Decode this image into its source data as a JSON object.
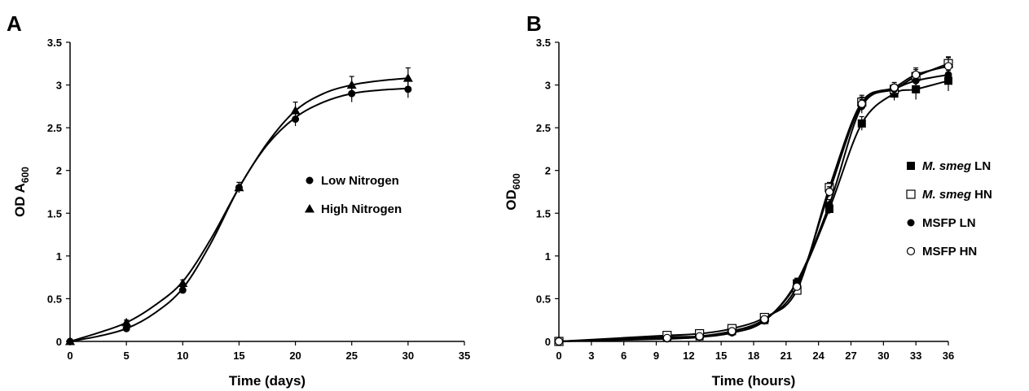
{
  "chart_data": [
    {
      "panel": "A",
      "type": "line",
      "xlabel": "Time (days)",
      "ylabel": {
        "main": "OD A",
        "sub": "600"
      },
      "xlim": [
        0,
        35
      ],
      "ylim": [
        0,
        3.5
      ],
      "xticks": [
        "0",
        "5",
        "10",
        "15",
        "20",
        "25",
        "30",
        "35"
      ],
      "yticks": [
        "0",
        "0.5",
        "1",
        "1.5",
        "2",
        "2.5",
        "3",
        "3.5"
      ],
      "grid": false,
      "legend_position": "center-right",
      "series": [
        {
          "name": "Low Nitrogen",
          "marker": "circle",
          "x": [
            0,
            5,
            10,
            15,
            20,
            25,
            30
          ],
          "y": [
            0,
            0.15,
            0.6,
            1.8,
            2.6,
            2.9,
            2.95
          ],
          "err": [
            0,
            0.02,
            0.03,
            0.06,
            0.08,
            0.1,
            0.1
          ],
          "fit": [
            [
              0,
              0
            ],
            [
              2.5,
              0.06
            ],
            [
              5,
              0.15
            ],
            [
              7.5,
              0.33
            ],
            [
              10,
              0.62
            ],
            [
              12.5,
              1.15
            ],
            [
              15,
              1.8
            ],
            [
              17.5,
              2.3
            ],
            [
              20,
              2.62
            ],
            [
              22.5,
              2.8
            ],
            [
              25,
              2.9
            ],
            [
              27.5,
              2.94
            ],
            [
              30,
              2.96
            ]
          ]
        },
        {
          "name": "High Nitrogen",
          "marker": "triangle",
          "x": [
            0,
            5,
            10,
            15,
            20,
            25,
            30
          ],
          "y": [
            0,
            0.22,
            0.68,
            1.8,
            2.7,
            3.0,
            3.08
          ],
          "err": [
            0,
            0.03,
            0.04,
            0.06,
            0.1,
            0.1,
            0.12
          ],
          "fit": [
            [
              0,
              0
            ],
            [
              2.5,
              0.1
            ],
            [
              5,
              0.22
            ],
            [
              7.5,
              0.42
            ],
            [
              10,
              0.7
            ],
            [
              12.5,
              1.2
            ],
            [
              15,
              1.8
            ],
            [
              17.5,
              2.32
            ],
            [
              20,
              2.7
            ],
            [
              22.5,
              2.9
            ],
            [
              25,
              3.0
            ],
            [
              27.5,
              3.05
            ],
            [
              30,
              3.08
            ]
          ]
        }
      ]
    },
    {
      "panel": "B",
      "type": "line",
      "xlabel": "Time (hours)",
      "ylabel": {
        "main": "OD",
        "sub": "600"
      },
      "xlim": [
        0,
        36
      ],
      "ylim": [
        0,
        3.5
      ],
      "xticks": [
        "0",
        "3",
        "6",
        "9",
        "12",
        "15",
        "18",
        "21",
        "24",
        "27",
        "30",
        "33",
        "36"
      ],
      "yticks": [
        "0",
        "0.5",
        "1",
        "1.5",
        "2",
        "2.5",
        "3",
        "3.5"
      ],
      "grid": false,
      "legend_position": "center-right",
      "series": [
        {
          "name": {
            "italic": "M. smeg",
            "rest": " LN"
          },
          "marker": "square-filled",
          "x": [
            0,
            10,
            13,
            16,
            19,
            22,
            25,
            28,
            31,
            33,
            36
          ],
          "y": [
            0,
            0.05,
            0.06,
            0.12,
            0.25,
            0.68,
            1.55,
            2.55,
            2.9,
            2.95,
            3.05
          ],
          "err": [
            0,
            0.02,
            0.02,
            0.02,
            0.03,
            0.04,
            0.06,
            0.08,
            0.08,
            0.12,
            0.12
          ]
        },
        {
          "name": {
            "italic": "M. smeg",
            "rest": " HN"
          },
          "marker": "square-open",
          "x": [
            0,
            10,
            13,
            16,
            19,
            22,
            25,
            28,
            31,
            33,
            36
          ],
          "y": [
            0,
            0.07,
            0.09,
            0.15,
            0.28,
            0.6,
            1.8,
            2.8,
            2.95,
            3.1,
            3.25
          ],
          "err": [
            0,
            0.02,
            0.02,
            0.02,
            0.03,
            0.04,
            0.06,
            0.08,
            0.06,
            0.08,
            0.08
          ]
        },
        {
          "name": {
            "italic": "",
            "rest": "MSFP LN"
          },
          "marker": "circle-filled",
          "x": [
            0,
            10,
            13,
            16,
            19,
            22,
            25,
            28,
            31,
            33,
            36
          ],
          "y": [
            0,
            0.03,
            0.05,
            0.1,
            0.24,
            0.7,
            1.6,
            2.75,
            2.95,
            3.05,
            3.12
          ],
          "err": [
            0,
            0.02,
            0.02,
            0.02,
            0.03,
            0.04,
            0.06,
            0.08,
            0.06,
            0.08,
            0.08
          ]
        },
        {
          "name": {
            "italic": "",
            "rest": "MSFP HN"
          },
          "marker": "circle-open",
          "x": [
            0,
            10,
            13,
            16,
            19,
            22,
            25,
            28,
            31,
            33,
            36
          ],
          "y": [
            0,
            0.04,
            0.06,
            0.12,
            0.26,
            0.64,
            1.75,
            2.78,
            2.97,
            3.12,
            3.22
          ],
          "err": [
            0,
            0.02,
            0.02,
            0.02,
            0.03,
            0.04,
            0.06,
            0.08,
            0.06,
            0.08,
            0.1
          ]
        }
      ]
    }
  ],
  "panel_labels": [
    "A",
    "B"
  ]
}
